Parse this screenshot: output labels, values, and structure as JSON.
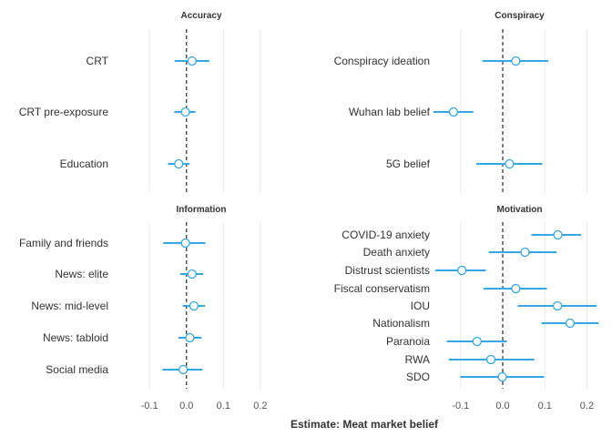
{
  "chart_data": {
    "type": "scatter",
    "xlabel": "Estimate: Meat market belief",
    "xticks": [
      -0.1,
      0,
      0.1,
      0.2
    ],
    "xtick_labels": [
      "-0.1",
      "0.0",
      "0.1",
      "0.2"
    ],
    "xlim": [
      -0.145,
      0.225
    ],
    "reference_line": 0,
    "grid": true,
    "colors": {
      "point_line": "#35A7E6",
      "point_fill": "#ffffff",
      "grid": "#e8e8e8",
      "reference": "#000000"
    },
    "panels": [
      {
        "title": "Accuracy",
        "rows": [
          {
            "label": "CRT",
            "estimate": 0.015,
            "low": -0.032,
            "high": 0.062
          },
          {
            "label": "CRT pre-exposure",
            "estimate": -0.003,
            "low": -0.033,
            "high": 0.024
          },
          {
            "label": "Education",
            "estimate": -0.021,
            "low": -0.05,
            "high": 0.008
          }
        ]
      },
      {
        "title": "Conspiracy",
        "rows": [
          {
            "label": "Conspiracy ideation",
            "estimate": 0.031,
            "low": -0.048,
            "high": 0.108
          },
          {
            "label": "Wuhan lab belief",
            "estimate": -0.117,
            "low": -0.165,
            "high": -0.07
          },
          {
            "label": "5G belief",
            "estimate": 0.016,
            "low": -0.063,
            "high": 0.094
          }
        ]
      },
      {
        "title": "Information",
        "rows": [
          {
            "label": "Family and friends",
            "estimate": -0.003,
            "low": -0.063,
            "high": 0.051
          },
          {
            "label": "News: elite",
            "estimate": 0.015,
            "low": -0.017,
            "high": 0.045
          },
          {
            "label": "News: mid-level",
            "estimate": 0.02,
            "low": -0.01,
            "high": 0.05
          },
          {
            "label": "News: tabloid",
            "estimate": 0.009,
            "low": -0.022,
            "high": 0.041
          },
          {
            "label": "Social media",
            "estimate": -0.009,
            "low": -0.065,
            "high": 0.043
          }
        ]
      },
      {
        "title": "Motivation",
        "rows": [
          {
            "label": "COVID-19 anxiety",
            "estimate": 0.131,
            "low": 0.068,
            "high": 0.186
          },
          {
            "label": "Death anxiety",
            "estimate": 0.053,
            "low": -0.033,
            "high": 0.128
          },
          {
            "label": "Distrust scientists",
            "estimate": -0.097,
            "low": -0.16,
            "high": -0.04
          },
          {
            "label": "Fiscal conservatism",
            "estimate": 0.031,
            "low": -0.046,
            "high": 0.105
          },
          {
            "label": "IOU",
            "estimate": 0.13,
            "low": 0.036,
            "high": 0.223
          },
          {
            "label": "Nationalism",
            "estimate": 0.16,
            "low": 0.092,
            "high": 0.228
          },
          {
            "label": "Paranoia",
            "estimate": -0.061,
            "low": -0.133,
            "high": 0.01
          },
          {
            "label": "RWA",
            "estimate": -0.028,
            "low": -0.128,
            "high": 0.075
          },
          {
            "label": "SDO",
            "estimate": -0.001,
            "low": -0.101,
            "high": 0.098
          }
        ]
      }
    ]
  }
}
